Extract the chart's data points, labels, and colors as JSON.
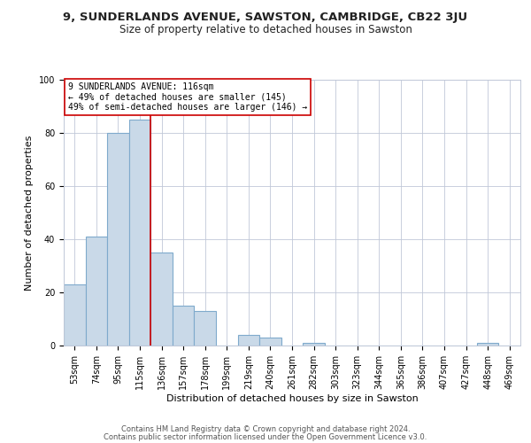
{
  "title": "9, SUNDERLANDS AVENUE, SAWSTON, CAMBRIDGE, CB22 3JU",
  "subtitle": "Size of property relative to detached houses in Sawston",
  "xlabel": "Distribution of detached houses by size in Sawston",
  "ylabel": "Number of detached properties",
  "bar_labels": [
    "53sqm",
    "74sqm",
    "95sqm",
    "115sqm",
    "136sqm",
    "157sqm",
    "178sqm",
    "199sqm",
    "219sqm",
    "240sqm",
    "261sqm",
    "282sqm",
    "303sqm",
    "323sqm",
    "344sqm",
    "365sqm",
    "386sqm",
    "407sqm",
    "427sqm",
    "448sqm",
    "469sqm"
  ],
  "bar_values": [
    23,
    41,
    80,
    85,
    35,
    15,
    13,
    0,
    4,
    3,
    0,
    1,
    0,
    0,
    0,
    0,
    0,
    0,
    0,
    1,
    0
  ],
  "bar_color": "#c9d9e8",
  "bar_edge_color": "#7faacc",
  "bar_linewidth": 0.8,
  "vline_x": 3.5,
  "vline_color": "#cc0000",
  "ylim": [
    0,
    100
  ],
  "yticks": [
    0,
    20,
    40,
    60,
    80,
    100
  ],
  "annotation_box_text": "9 SUNDERLANDS AVENUE: 116sqm\n← 49% of detached houses are smaller (145)\n49% of semi-detached houses are larger (146) →",
  "annotation_box_color": "#cc0000",
  "annotation_box_facecolor": "#ffffff",
  "footer_line1": "Contains HM Land Registry data © Crown copyright and database right 2024.",
  "footer_line2": "Contains public sector information licensed under the Open Government Licence v3.0.",
  "background_color": "#ffffff",
  "grid_color": "#c0c8d8",
  "title_fontsize": 9.5,
  "subtitle_fontsize": 8.5,
  "axis_label_fontsize": 8,
  "tick_fontsize": 7,
  "annotation_fontsize": 7,
  "footer_fontsize": 6
}
